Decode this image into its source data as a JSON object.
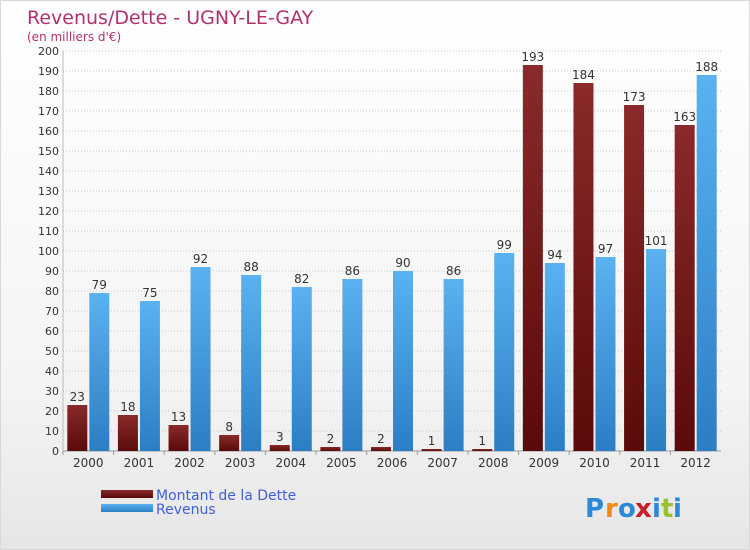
{
  "chart_data": {
    "type": "bar",
    "title": "Revenus/Dette - UGNY-LE-GAY",
    "subtitle": "(en milliers d'€)",
    "categories": [
      "2000",
      "2001",
      "2002",
      "2003",
      "2004",
      "2005",
      "2006",
      "2007",
      "2008",
      "2009",
      "2010",
      "2011",
      "2012"
    ],
    "series": [
      {
        "name": "Montant de la Dette",
        "values": [
          23,
          18,
          13,
          8,
          3,
          2,
          2,
          1,
          1,
          193,
          184,
          173,
          163
        ],
        "color": "#7a1a1a"
      },
      {
        "name": "Revenus",
        "values": [
          79,
          75,
          92,
          88,
          82,
          86,
          90,
          86,
          99,
          94,
          97,
          101,
          188
        ],
        "color": "#4da6e8"
      }
    ],
    "ylim": [
      0,
      200
    ],
    "ytick_step": 10,
    "grid": true,
    "legend_position": "bottom-left"
  },
  "brand": {
    "letters": [
      "P",
      "r",
      "o",
      "x",
      "i",
      "t",
      "i"
    ],
    "colors": [
      "#2a8ad8",
      "#f08a1c",
      "#2a8ad8",
      "#c8202a",
      "#2a8ad8",
      "#9ac02a",
      "#2a8ad8"
    ]
  },
  "colors": {
    "title": "#b03070",
    "legend_text": "#4060d8",
    "axis_text": "#333333",
    "grid": "#c8c8c8"
  }
}
